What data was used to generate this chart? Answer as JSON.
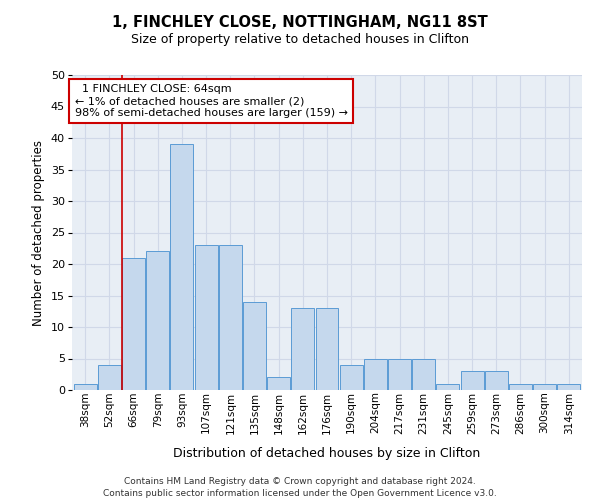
{
  "title1": "1, FINCHLEY CLOSE, NOTTINGHAM, NG11 8ST",
  "title2": "Size of property relative to detached houses in Clifton",
  "xlabel": "Distribution of detached houses by size in Clifton",
  "ylabel": "Number of detached properties",
  "categories": [
    "38sqm",
    "52sqm",
    "66sqm",
    "79sqm",
    "93sqm",
    "107sqm",
    "121sqm",
    "135sqm",
    "148sqm",
    "162sqm",
    "176sqm",
    "190sqm",
    "204sqm",
    "217sqm",
    "231sqm",
    "245sqm",
    "259sqm",
    "273sqm",
    "286sqm",
    "300sqm",
    "314sqm"
  ],
  "values": [
    1,
    4,
    21,
    22,
    39,
    23,
    23,
    14,
    2,
    13,
    13,
    4,
    5,
    5,
    5,
    1,
    3,
    3,
    1,
    1,
    1
  ],
  "bar_color": "#c5d8ed",
  "bar_edge_color": "#5b9bd5",
  "red_line_x": 1.5,
  "annotation_text": "  1 FINCHLEY CLOSE: 64sqm\n← 1% of detached houses are smaller (2)\n98% of semi-detached houses are larger (159) →",
  "annotation_box_color": "#ffffff",
  "annotation_box_edge": "#cc0000",
  "grid_color": "#d0d8e8",
  "background_color": "#e8eef5",
  "ylim": [
    0,
    50
  ],
  "yticks": [
    0,
    5,
    10,
    15,
    20,
    25,
    30,
    35,
    40,
    45,
    50
  ],
  "footer1": "Contains HM Land Registry data © Crown copyright and database right 2024.",
  "footer2": "Contains public sector information licensed under the Open Government Licence v3.0."
}
